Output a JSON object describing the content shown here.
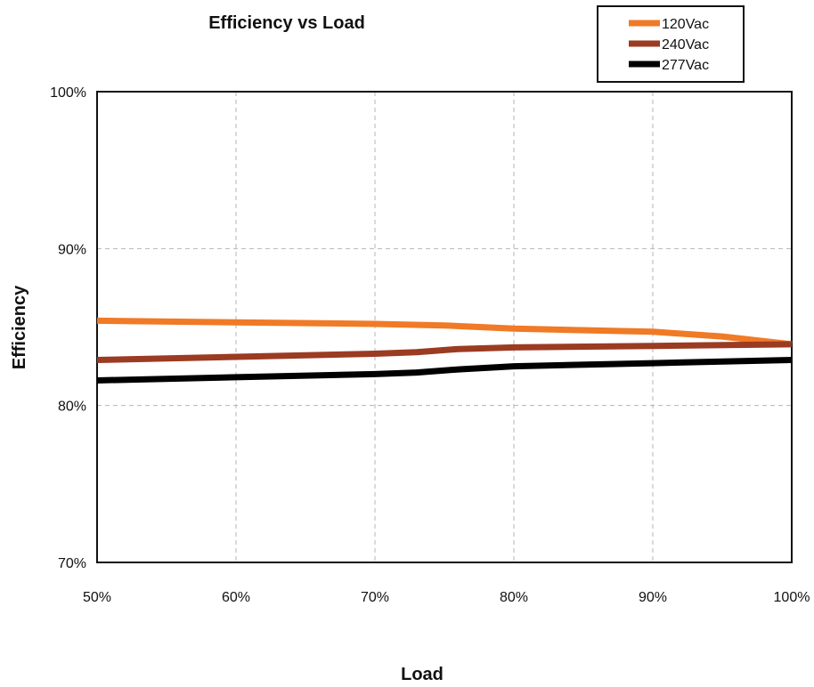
{
  "chart_data": {
    "type": "line",
    "title": "Efficiency vs Load",
    "xlabel": "Load",
    "ylabel": "Efficiency",
    "xlim": [
      50,
      100
    ],
    "ylim": [
      70,
      100
    ],
    "x_ticks": [
      "50%",
      "60%",
      "70%",
      "80%",
      "90%",
      "100%"
    ],
    "y_ticks": [
      "100%",
      "90%",
      "80%",
      "70%"
    ],
    "grid": true,
    "legend_position": "top-right",
    "series": [
      {
        "name": "120Vac",
        "color": "#f07a26",
        "x": [
          50,
          60,
          70,
          75,
          80,
          90,
          95,
          100
        ],
        "y": [
          85.4,
          85.3,
          85.2,
          85.1,
          84.9,
          84.7,
          84.4,
          83.9
        ]
      },
      {
        "name": "240Vac",
        "color": "#9b3b22",
        "x": [
          50,
          60,
          70,
          73,
          76,
          80,
          90,
          100
        ],
        "y": [
          82.9,
          83.1,
          83.3,
          83.4,
          83.6,
          83.7,
          83.8,
          83.9
        ]
      },
      {
        "name": "277Vac",
        "color": "#000000",
        "x": [
          50,
          60,
          70,
          73,
          76,
          80,
          90,
          100
        ],
        "y": [
          81.6,
          81.8,
          82.0,
          82.1,
          82.3,
          82.5,
          82.7,
          82.9
        ]
      }
    ]
  }
}
